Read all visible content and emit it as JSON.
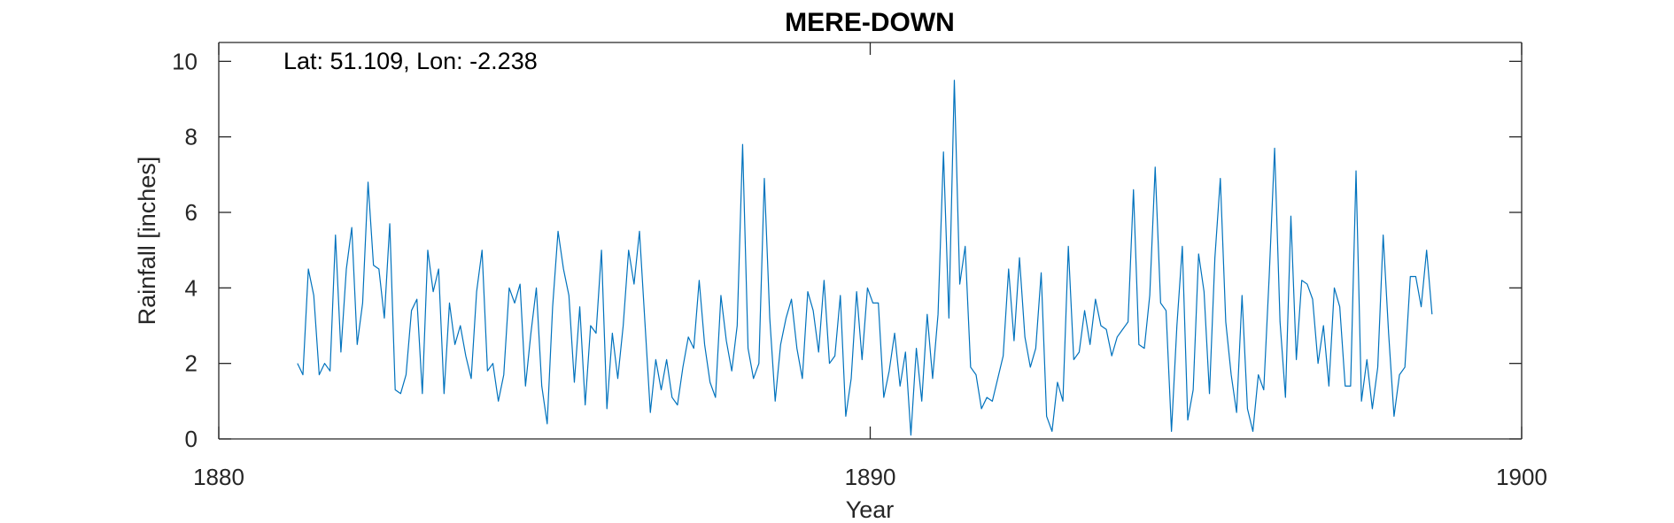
{
  "chart_data": {
    "type": "line",
    "title": "MERE-DOWN",
    "annotation": "Lat: 51.109, Lon: -2.238",
    "xlabel": "Year",
    "ylabel": "Rainfall [inches]",
    "xlim": [
      1880,
      1900
    ],
    "ylim": [
      0,
      10.5
    ],
    "xticks": [
      1880,
      1890,
      1900
    ],
    "yticks": [
      0,
      2,
      4,
      6,
      8,
      10
    ],
    "grid": false,
    "line_color": "#0072BD",
    "series": [
      {
        "x_start": 1881.2083,
        "x_step": 0.08333,
        "values": [
          2.0,
          1.7,
          4.5,
          3.8,
          1.7,
          2.0,
          1.8,
          5.4,
          2.3,
          4.5,
          5.6,
          2.5,
          3.6,
          6.8,
          4.6,
          4.5,
          3.2,
          5.7,
          1.3,
          1.2,
          1.7,
          3.4,
          3.7,
          1.2,
          5.0,
          3.9,
          4.5,
          1.2,
          3.6,
          2.5,
          3.0,
          2.2,
          1.6,
          3.9,
          5.0,
          1.8,
          2.0,
          1.0,
          1.7,
          4.0,
          3.6,
          4.1,
          1.4,
          2.8,
          4.0,
          1.4,
          0.4,
          3.5,
          5.5,
          4.5,
          3.8,
          1.5,
          3.5,
          0.9,
          3.0,
          2.8,
          5.0,
          0.8,
          2.8,
          1.6,
          3.0,
          5.0,
          4.1,
          5.5,
          3.1,
          0.7,
          2.1,
          1.3,
          2.1,
          1.1,
          0.9,
          1.9,
          2.7,
          2.4,
          4.2,
          2.5,
          1.5,
          1.1,
          3.8,
          2.6,
          1.8,
          3.0,
          7.8,
          2.4,
          1.6,
          2.0,
          6.9,
          3.2,
          1.0,
          2.5,
          3.2,
          3.7,
          2.4,
          1.6,
          3.9,
          3.4,
          2.3,
          4.2,
          2.0,
          2.2,
          3.8,
          0.6,
          1.6,
          3.9,
          2.1,
          4.0,
          3.6,
          3.6,
          1.1,
          1.8,
          2.8,
          1.4,
          2.3,
          0.1,
          2.4,
          1.0,
          3.3,
          1.6,
          3.3,
          7.6,
          3.2,
          9.5,
          4.1,
          5.1,
          1.9,
          1.7,
          0.8,
          1.1,
          1.0,
          1.6,
          2.2,
          4.5,
          2.6,
          4.8,
          2.7,
          1.9,
          2.4,
          4.4,
          0.6,
          0.2,
          1.5,
          1.0,
          5.1,
          2.1,
          2.3,
          3.4,
          2.5,
          3.7,
          3.0,
          2.9,
          2.2,
          2.7,
          2.9,
          3.1,
          6.6,
          2.5,
          2.4,
          3.8,
          7.2,
          3.6,
          3.4,
          0.2,
          3.0,
          5.1,
          0.5,
          1.3,
          4.9,
          3.9,
          1.2,
          4.8,
          6.9,
          3.1,
          1.7,
          0.7,
          3.8,
          0.8,
          0.2,
          1.7,
          1.3,
          4.3,
          7.7,
          3.1,
          1.1,
          5.9,
          2.1,
          4.2,
          4.1,
          3.7,
          2.0,
          3.0,
          1.4,
          4.0,
          3.5,
          1.4,
          1.4,
          7.1,
          1.0,
          2.1,
          0.8,
          1.9,
          5.4,
          2.8,
          0.6,
          1.7,
          1.9,
          4.3,
          4.3,
          3.5,
          5.0,
          3.3
        ]
      }
    ]
  }
}
